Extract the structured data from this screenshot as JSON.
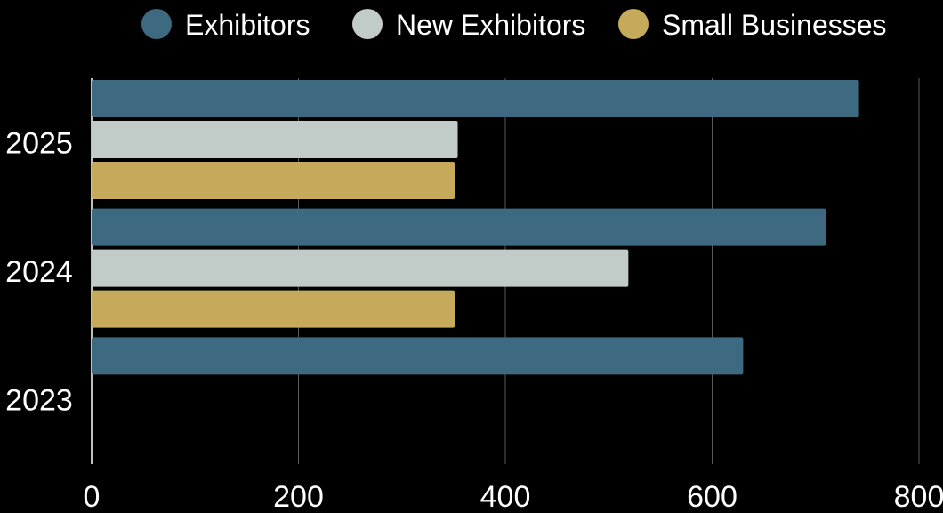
{
  "chart_data": {
    "type": "bar",
    "orientation": "horizontal",
    "categories": [
      "2025",
      "2024",
      "2023"
    ],
    "series": [
      {
        "name": "Exhibitors",
        "color": "#3d6a80",
        "values": [
          742,
          710,
          630
        ]
      },
      {
        "name": "New Exhibitors",
        "color": "#c1ccc8",
        "values": [
          354,
          519,
          null
        ]
      },
      {
        "name": "Small Businesses",
        "color": "#c5aa5b",
        "values": [
          351,
          351,
          null
        ]
      }
    ],
    "xlim": [
      0,
      800
    ],
    "xticks": [
      "0",
      "200",
      "400",
      "600",
      "800"
    ],
    "grid": "vertical",
    "legend": "top-center",
    "title": "",
    "xlabel": "",
    "ylabel": ""
  }
}
